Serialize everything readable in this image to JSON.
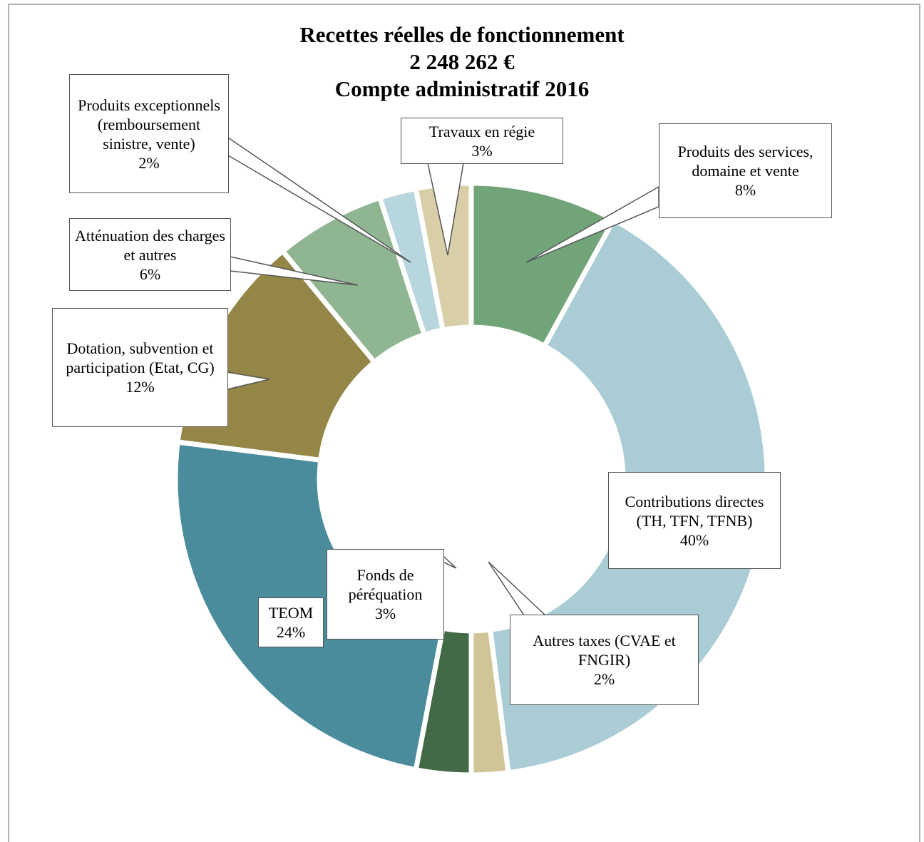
{
  "chart_data": {
    "type": "donut",
    "title": [
      "Recettes réelles de fonctionnement",
      "2 248 262 €",
      "Compte administratif 2016"
    ],
    "categories": [
      "Produits des services, domaine et vente",
      "Contributions directes (TH, TFN, TFNB)",
      "Autres taxes (CVAE et FNGIR)",
      "Fonds de péréquation",
      "TEOM",
      "Dotation, subvention et participation (Etat, CG)",
      "Atténuation des charges et autres",
      "Produits exceptionnels (remboursement sinistre, vente)",
      "Travaux en régie"
    ],
    "values": [
      8,
      40,
      2,
      3,
      24,
      12,
      6,
      2,
      3
    ],
    "value_labels": [
      "8%",
      "40%",
      "2%",
      "3%",
      "24%",
      "12%",
      "6%",
      "2%",
      "3%"
    ],
    "colors": [
      "#72a47a",
      "#a9ccd5",
      "#cfc597",
      "#426a47",
      "#4a8b9c",
      "#938646",
      "#8fb592",
      "#b8d6de",
      "#d8cfa8"
    ]
  }
}
